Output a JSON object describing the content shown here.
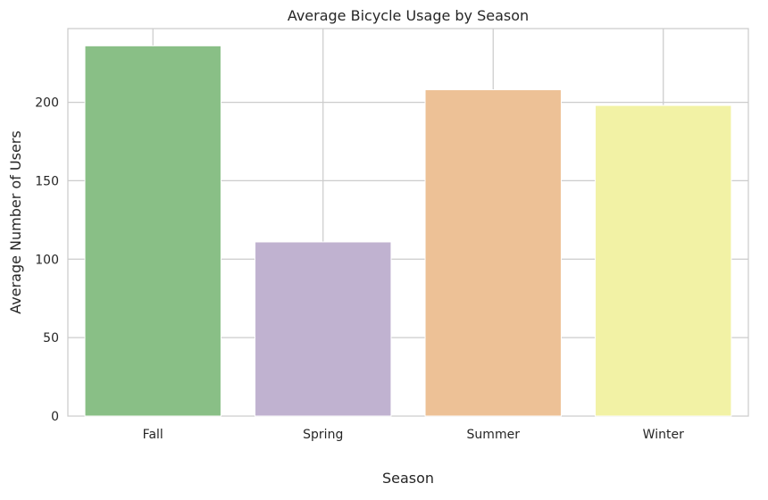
{
  "chart_data": {
    "type": "bar",
    "title": "Average Bicycle Usage by Season",
    "xlabel": "Season",
    "ylabel": "Average Number of Users",
    "categories": [
      "Fall",
      "Spring",
      "Summer",
      "Winter"
    ],
    "values": [
      236.0,
      111.0,
      208.0,
      198.0
    ],
    "colors": [
      "#89bf86",
      "#c0b2d0",
      "#edc196",
      "#f2f2a5"
    ],
    "ylim": [
      0,
      247
    ],
    "yticks": [
      0,
      50,
      100,
      150,
      200
    ],
    "grid": true,
    "legend": "none"
  }
}
